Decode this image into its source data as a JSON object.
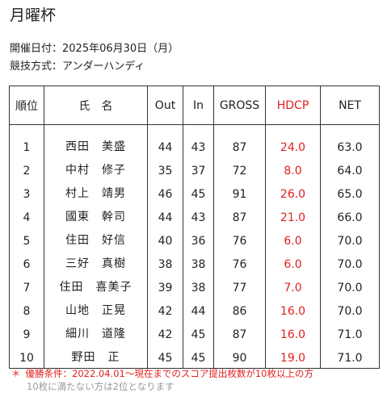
{
  "title": "月曜杯",
  "event_date": "開催日付：2025年06月30日（月）",
  "event_format": "競技方式：アンダーハンディ",
  "colors": {
    "text": "#222222",
    "hdcp": "#e02020",
    "note": "#e02020",
    "subnote": "#999999",
    "border": "#333333"
  },
  "table": {
    "headers": {
      "rank": "順位",
      "name": "氏　名",
      "out": "Out",
      "in": "In",
      "gross": "GROSS",
      "hdcp": "HDCP",
      "net": "NET"
    },
    "rows": [
      {
        "rank": "1",
        "name": "西田　美盛",
        "out": "44",
        "in": "43",
        "gross": "87",
        "hdcp": "24.0",
        "net": "63.0"
      },
      {
        "rank": "2",
        "name": "中村　修子",
        "out": "35",
        "in": "37",
        "gross": "72",
        "hdcp": "8.0",
        "net": "64.0"
      },
      {
        "rank": "3",
        "name": "村上　靖男",
        "out": "46",
        "in": "45",
        "gross": "91",
        "hdcp": "26.0",
        "net": "65.0"
      },
      {
        "rank": "4",
        "name": "國東　幹司",
        "out": "44",
        "in": "43",
        "gross": "87",
        "hdcp": "21.0",
        "net": "66.0"
      },
      {
        "rank": "5",
        "name": "住田　好信",
        "out": "40",
        "in": "36",
        "gross": "76",
        "hdcp": "6.0",
        "net": "70.0"
      },
      {
        "rank": "6",
        "name": "三好　真樹",
        "out": "38",
        "in": "38",
        "gross": "76",
        "hdcp": "6.0",
        "net": "70.0"
      },
      {
        "rank": "7",
        "name": "住田　喜美子",
        "out": "39",
        "in": "38",
        "gross": "77",
        "hdcp": "7.0",
        "net": "70.0"
      },
      {
        "rank": "8",
        "name": "山地　正晃",
        "out": "42",
        "in": "44",
        "gross": "86",
        "hdcp": "16.0",
        "net": "70.0"
      },
      {
        "rank": "9",
        "name": "細川　道隆",
        "out": "42",
        "in": "45",
        "gross": "87",
        "hdcp": "16.0",
        "net": "71.0"
      },
      {
        "rank": "10",
        "name": "野田　正",
        "out": "45",
        "in": "45",
        "gross": "90",
        "hdcp": "19.0",
        "net": "71.0"
      }
    ]
  },
  "notes": {
    "mark": "＊",
    "line1": "優勝条件：2022.04.01～現在までのスコア提出枚数が10枚以上の方",
    "line2": "10枚に満たない方は2位となります"
  }
}
